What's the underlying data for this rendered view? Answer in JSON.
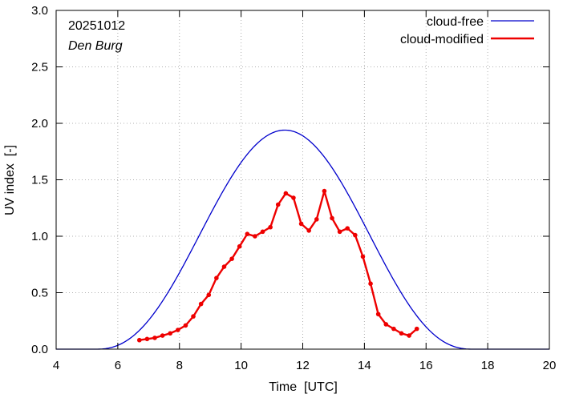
{
  "chart_data": {
    "type": "line",
    "title": "",
    "annotations": {
      "date": "20251012",
      "location": "Den Burg"
    },
    "xlabel": "Time  [UTC]",
    "ylabel": "UV index  [-]",
    "xlim": [
      4,
      20
    ],
    "ylim": [
      0.0,
      3.0
    ],
    "x_ticks": [
      "4",
      "6",
      "8",
      "10",
      "12",
      "14",
      "16",
      "18",
      "20"
    ],
    "x_tick_values": [
      4,
      6,
      8,
      10,
      12,
      14,
      16,
      18,
      20
    ],
    "y_ticks": [
      "0.0",
      "0.5",
      "1.0",
      "1.5",
      "2.0",
      "2.5",
      "3.0"
    ],
    "y_tick_values": [
      0.0,
      0.5,
      1.0,
      1.5,
      2.0,
      2.5,
      3.0
    ],
    "grid": true,
    "legend_position": "top-right",
    "series": [
      {
        "name": "cloud-free",
        "color": "#0000cc",
        "style": "line",
        "curve": {
          "center": 11.42,
          "peak": 1.94,
          "start": 5.3,
          "end": 17.5
        }
      },
      {
        "name": "cloud-modified",
        "color": "#ee0000",
        "style": "line-points",
        "x": [
          6.7,
          6.95,
          7.2,
          7.45,
          7.7,
          7.95,
          8.2,
          8.45,
          8.7,
          8.95,
          9.2,
          9.45,
          9.7,
          9.95,
          10.2,
          10.45,
          10.7,
          10.95,
          11.2,
          11.45,
          11.7,
          11.95,
          12.2,
          12.45,
          12.7,
          12.95,
          13.2,
          13.45,
          13.7,
          13.95,
          14.2,
          14.45,
          14.7,
          14.95,
          15.2,
          15.45,
          15.7
        ],
        "values": [
          0.08,
          0.09,
          0.1,
          0.12,
          0.14,
          0.17,
          0.21,
          0.29,
          0.4,
          0.48,
          0.63,
          0.73,
          0.8,
          0.91,
          1.02,
          1.0,
          1.04,
          1.08,
          1.28,
          1.38,
          1.34,
          1.11,
          1.05,
          1.15,
          1.4,
          1.16,
          1.04,
          1.07,
          1.01,
          0.82,
          0.58,
          0.31,
          0.22,
          0.18,
          0.14,
          0.12,
          0.18
        ]
      }
    ]
  }
}
